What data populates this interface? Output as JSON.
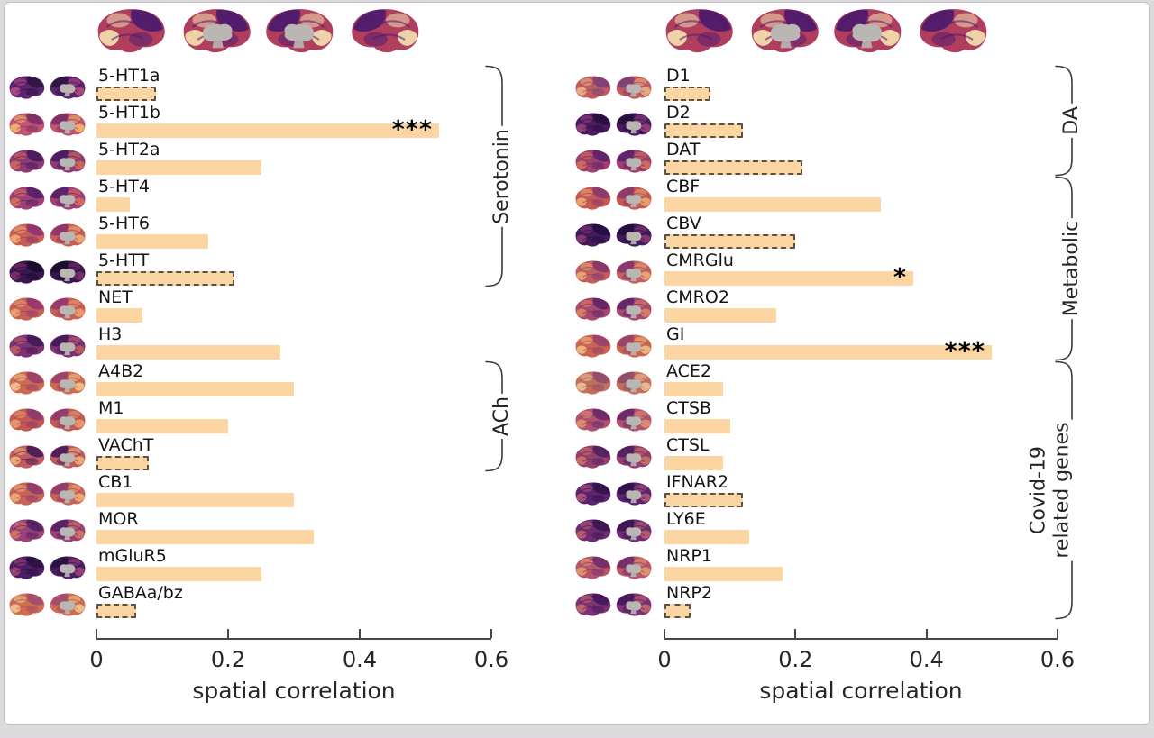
{
  "frame": {
    "card_bg": "#ffffff",
    "card_border": "#c6c3c7",
    "outer_bg": "#dcdadd"
  },
  "style": {
    "bar_fill": "#fbd6a3",
    "bar_dash_color": "#5c5140",
    "axis_color": "#474747",
    "text_color": "#141414",
    "significance_color": "#000000"
  },
  "top_maps": {
    "palette": [
      "#4a1a6e",
      "#b03e5e",
      "#f6e2b0"
    ],
    "gray": "#b9b6b3"
  },
  "chart_data": [
    {
      "type": "bar",
      "orientation": "horizontal",
      "title": "",
      "xlabel": "spatial correlation",
      "xlim": [
        0,
        0.6
      ],
      "xticks": [
        0,
        0.2,
        0.4,
        0.6
      ],
      "xtick_labels": [
        "0",
        "0.2",
        "0.4",
        "0.6"
      ],
      "grid": false,
      "categories": [
        "5-HT1a",
        "5-HT1b",
        "5-HT2a",
        "5-HT4",
        "5-HT6",
        "5-HTT",
        "NET",
        "H3",
        "A4B2",
        "M1",
        "VAChT",
        "CB1",
        "MOR",
        "mGluR5",
        "GABAa/bz"
      ],
      "values": [
        0.09,
        0.52,
        0.25,
        0.05,
        0.17,
        0.21,
        0.07,
        0.28,
        0.3,
        0.2,
        0.08,
        0.3,
        0.33,
        0.25,
        0.06
      ],
      "dashed": [
        true,
        false,
        false,
        false,
        false,
        true,
        false,
        false,
        false,
        false,
        true,
        false,
        false,
        false,
        true
      ],
      "significance": [
        "",
        "***",
        "",
        "",
        "",
        "",
        "",
        "",
        "",
        "",
        "",
        "",
        "",
        "",
        ""
      ],
      "groups": [
        {
          "label": "Serotonin",
          "from": 0,
          "to": 5
        },
        {
          "label": "ACh",
          "from": 8,
          "to": 10
        }
      ],
      "row_brain_colors": [
        [
          "#2e1440",
          "#5b2370",
          "#b44a82"
        ],
        [
          "#7a2d67",
          "#c2556f",
          "#f2b968"
        ],
        [
          "#461b5e",
          "#8e3a74",
          "#d06a55"
        ],
        [
          "#542068",
          "#a03f77",
          "#d8705a"
        ],
        [
          "#8c3270",
          "#c75f55",
          "#f0ad72"
        ],
        [
          "#1c0b2e",
          "#3a1650",
          "#7c2f6e"
        ],
        [
          "#93356f",
          "#c66055",
          "#eda06b"
        ],
        [
          "#3f1a56",
          "#7e3173",
          "#c25d62"
        ],
        [
          "#9a3f6e",
          "#cc6b50",
          "#f3c488"
        ],
        [
          "#8c3a70",
          "#c25a52",
          "#ec9c6a"
        ],
        [
          "#45185c",
          "#c05a60",
          "#f0b470"
        ],
        [
          "#8e3a70",
          "#c96352",
          "#f0ae74"
        ],
        [
          "#502062",
          "#9c4078",
          "#d47760"
        ],
        [
          "#2a1240",
          "#4c1d64",
          "#a04578"
        ],
        [
          "#a04a70",
          "#cf6e4e",
          "#f4c690"
        ]
      ]
    },
    {
      "type": "bar",
      "orientation": "horizontal",
      "title": "",
      "xlabel": "spatial correlation",
      "xlim": [
        0,
        0.6
      ],
      "xticks": [
        0,
        0.2,
        0.4,
        0.6
      ],
      "xtick_labels": [
        "0",
        "0.2",
        "0.4",
        "0.6"
      ],
      "grid": false,
      "categories": [
        "D1",
        "D2",
        "DAT",
        "CBF",
        "CBV",
        "CMRGlu",
        "CMRO2",
        "GI",
        "ACE2",
        "CTSB",
        "CTSL",
        "IFNAR2",
        "LY6E",
        "NRP1",
        "NRP2"
      ],
      "values": [
        0.07,
        0.12,
        0.21,
        0.33,
        0.2,
        0.38,
        0.17,
        0.5,
        0.09,
        0.1,
        0.09,
        0.12,
        0.13,
        0.18,
        0.04
      ],
      "dashed": [
        true,
        true,
        true,
        false,
        true,
        false,
        false,
        false,
        false,
        false,
        false,
        true,
        false,
        false,
        true
      ],
      "significance": [
        "",
        "",
        "",
        "",
        "",
        "*",
        "",
        "***",
        "",
        "",
        "",
        "",
        "",
        "",
        ""
      ],
      "groups": [
        {
          "label": "DA",
          "from": 0,
          "to": 2
        },
        {
          "label": "Metabolic",
          "from": 3,
          "to": 7
        },
        {
          "label": "Covid-19\nrelated genes",
          "from": 8,
          "to": 14
        }
      ],
      "row_brain_colors": [
        [
          "#7c3f78",
          "#bf5c5e",
          "#ecb184"
        ],
        [
          "#27103e",
          "#4a1b62",
          "#9a4078"
        ],
        [
          "#5c2268",
          "#a13f6e",
          "#d4705a"
        ],
        [
          "#8c3670",
          "#c45a52",
          "#efa66e"
        ],
        [
          "#241040",
          "#431a5c",
          "#8c3a74"
        ],
        [
          "#84356f",
          "#c05e60",
          "#eca873"
        ],
        [
          "#5e2468",
          "#a8486f",
          "#dd8260"
        ],
        [
          "#97406c",
          "#c9654f",
          "#f2bb80"
        ],
        [
          "#8d4a6e",
          "#c1705a",
          "#edc093"
        ],
        [
          "#66286a",
          "#b05270",
          "#e39068"
        ],
        [
          "#4e1f60",
          "#94406f",
          "#cc7262"
        ],
        [
          "#30124a",
          "#5c2470",
          "#b05578"
        ],
        [
          "#3a1650",
          "#6e2c72",
          "#bb5e70"
        ],
        [
          "#6f2e6e",
          "#b85568",
          "#e69a6e"
        ],
        [
          "#42185a",
          "#7c3276",
          "#c4686a"
        ]
      ]
    }
  ]
}
